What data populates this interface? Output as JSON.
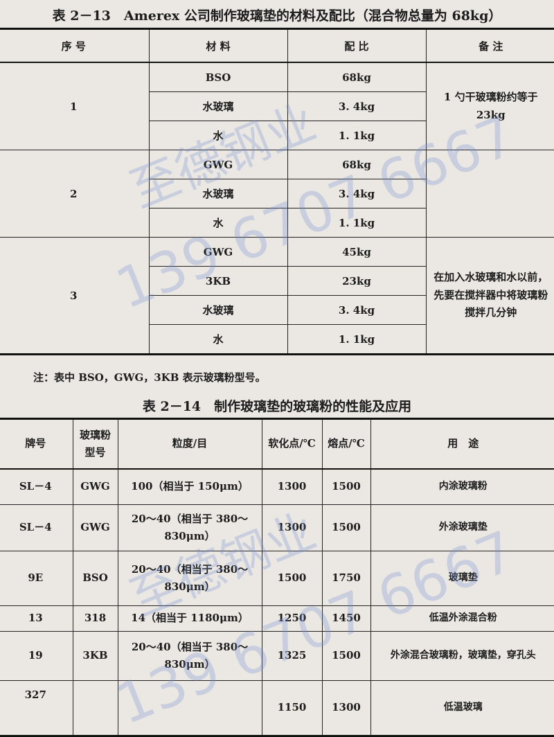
{
  "table1": {
    "title": "表 2－13　Amerex 公司制作玻璃垫的材料及配比（混合物总量为 68kg）",
    "headers": [
      "序 号",
      "材 料",
      "配 比",
      "备 注"
    ],
    "groups": [
      {
        "no": "1",
        "rows": [
          [
            "BSO",
            "68kg"
          ],
          [
            "水玻璃",
            "3. 4kg"
          ],
          [
            "水",
            "1. 1kg"
          ]
        ],
        "remark": "1 勺干玻璃粉约等于 23kg"
      },
      {
        "no": "2",
        "rows": [
          [
            "GWG",
            "68kg"
          ],
          [
            "水玻璃",
            "3. 4kg"
          ],
          [
            "水",
            "1. 1kg"
          ]
        ],
        "remark": ""
      },
      {
        "no": "3",
        "rows": [
          [
            "GWG",
            "45kg"
          ],
          [
            "3KB",
            "23kg"
          ],
          [
            "水玻璃",
            "3. 4kg"
          ],
          [
            "水",
            "1. 1kg"
          ]
        ],
        "remark": "在加入水玻璃和水以前，先要在搅拌器中将玻璃粉搅拌几分钟"
      }
    ],
    "note": "注：表中 BSO，GWG，3KB 表示玻璃粉型号。"
  },
  "table2": {
    "title": "表 2－14　制作玻璃垫的玻璃粉的性能及应用",
    "headers": [
      "牌号",
      "玻璃粉型号",
      "粒度/目",
      "软化点/℃",
      "熔点/℃",
      "用　途"
    ],
    "rows": [
      [
        "SL－4",
        "GWG",
        "100（相当于 150μm）",
        "1300",
        "1500",
        "内涂玻璃粉"
      ],
      [
        "SL－4",
        "GWG",
        "20～40（相当于 380～830μm）",
        "1300",
        "1500",
        "外涂玻璃垫"
      ],
      [
        "9E",
        "BSO",
        "20～40（相当于 380～830μm）",
        "1500",
        "1750",
        "玻璃垫"
      ],
      [
        "13",
        "318",
        "14（相当于 1180μm）",
        "1250",
        "1450",
        "低温外涂混合粉"
      ],
      [
        "19",
        "3KB",
        "20～40（相当于 380～830μm）",
        "1325",
        "1500",
        "外涂混合玻璃粉，玻璃垫，穿孔头"
      ],
      [
        "327",
        "",
        "",
        "1150",
        "1300",
        "低温玻璃"
      ]
    ]
  },
  "watermark": {
    "text": "至德钢业",
    "phone": "139 6707 6667",
    "color": "#6e8cd2"
  }
}
